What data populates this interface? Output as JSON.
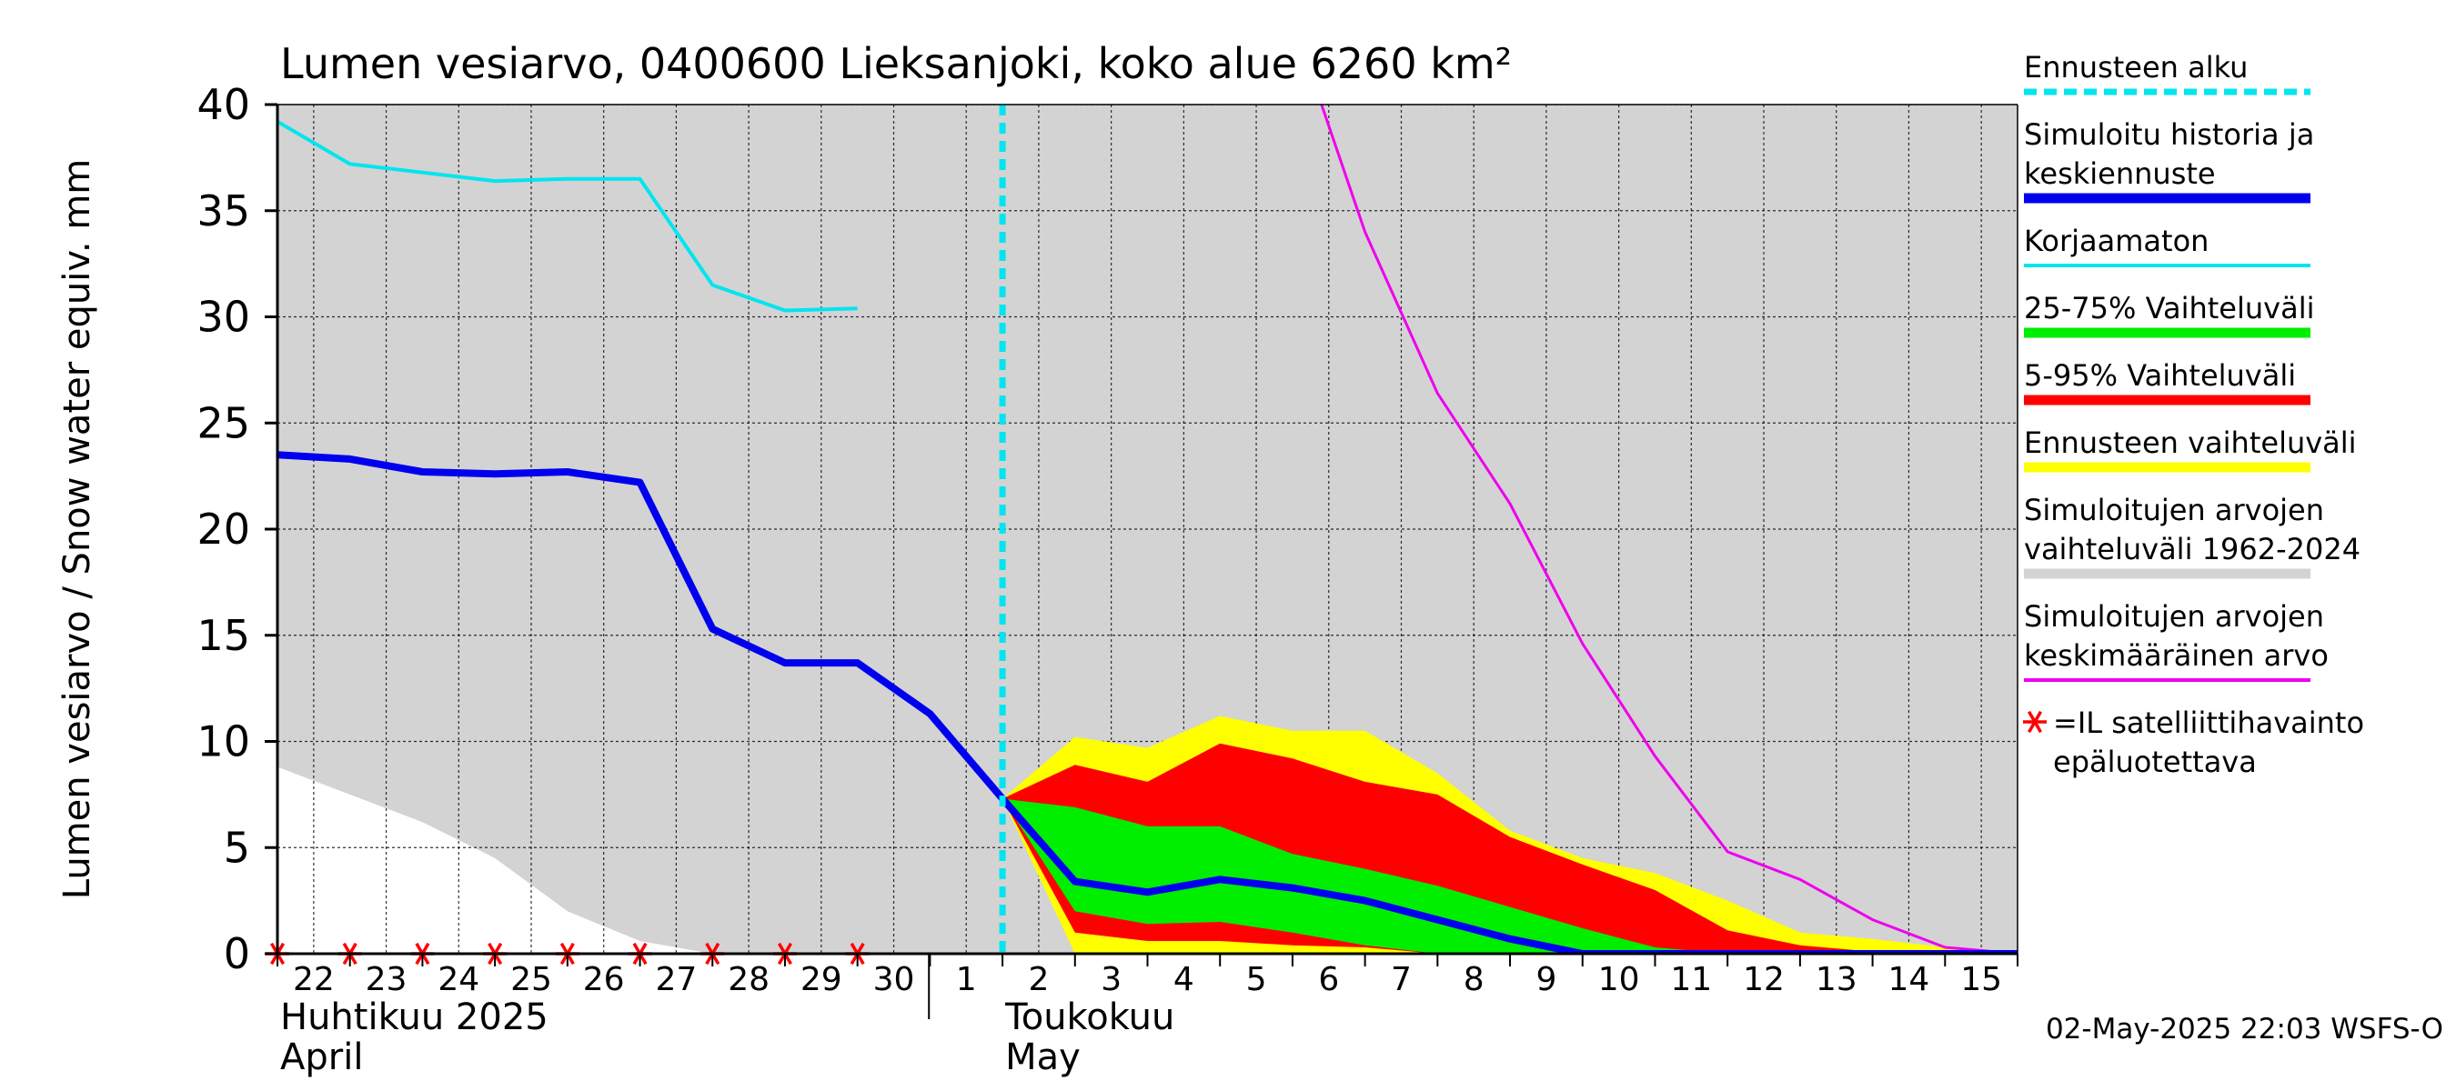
{
  "chart_data": {
    "type": "area",
    "title": "Lumen vesiarvo, 0400600 Lieksanjoki, koko alue 6260 km²",
    "ylabel": "Lumen vesiarvo / Snow water equiv.    mm",
    "ylim": [
      0,
      40
    ],
    "xlim": [
      21.5,
      45.5
    ],
    "y_ticks": [
      0,
      5,
      10,
      15,
      20,
      25,
      30,
      35,
      40
    ],
    "x_tick_labels": [
      {
        "x": 22,
        "label": "22"
      },
      {
        "x": 23,
        "label": "23"
      },
      {
        "x": 24,
        "label": "24"
      },
      {
        "x": 25,
        "label": "25"
      },
      {
        "x": 26,
        "label": "26"
      },
      {
        "x": 27,
        "label": "27"
      },
      {
        "x": 28,
        "label": "28"
      },
      {
        "x": 29,
        "label": "29"
      },
      {
        "x": 30,
        "label": "30"
      },
      {
        "x": 31,
        "label": "1"
      },
      {
        "x": 32,
        "label": "2"
      },
      {
        "x": 33,
        "label": "3"
      },
      {
        "x": 34,
        "label": "4"
      },
      {
        "x": 35,
        "label": "5"
      },
      {
        "x": 36,
        "label": "6"
      },
      {
        "x": 37,
        "label": "7"
      },
      {
        "x": 38,
        "label": "8"
      },
      {
        "x": 39,
        "label": "9"
      },
      {
        "x": 40,
        "label": "10"
      },
      {
        "x": 41,
        "label": "11"
      },
      {
        "x": 42,
        "label": "12"
      },
      {
        "x": 43,
        "label": "13"
      },
      {
        "x": 44,
        "label": "14"
      },
      {
        "x": 45,
        "label": "15"
      }
    ],
    "month_labels": [
      {
        "x": 21.5,
        "line1": "Huhtikuu  2025",
        "line2": "April"
      },
      {
        "x": 31.5,
        "line1": "Toukokuu",
        "line2": "May"
      }
    ],
    "month_divider_x": 31,
    "grid": true,
    "legend_position": "right",
    "forecast_start_x": 31.5,
    "series": [
      {
        "name": "Simuloitujen arvojen vaihteluväli 1962-2024",
        "kind": "band",
        "color": "#d3d3d3",
        "x": [
          21.5,
          45.5
        ],
        "low": [
          0,
          0
        ],
        "high": [
          40,
          40
        ]
      },
      {
        "name": "",
        "kind": "lower-band-edge",
        "color": "#ffffff",
        "x": [
          21.5,
          22.5,
          23.5,
          24.5,
          25.5,
          26.5,
          27.5,
          28.5
        ],
        "values": [
          8.8,
          7.5,
          6.2,
          4.5,
          2.0,
          0.6,
          0.0,
          0.0
        ]
      },
      {
        "name": "Ennusteen vaihteluväli",
        "kind": "band",
        "color": "#ffff00",
        "x": [
          31.5,
          32.5,
          33.5,
          34.5,
          35.5,
          36.5,
          37.5,
          38.5,
          39.5,
          40.5,
          41.5,
          42.5,
          43.5,
          44.5,
          45.5
        ],
        "low": [
          7.3,
          0.0,
          0.0,
          0.0,
          0.0,
          0.0,
          0.0,
          0.0,
          0.0,
          0.0,
          0.0,
          0.0,
          0.0,
          0.0,
          0.0
        ],
        "high": [
          7.3,
          10.2,
          9.7,
          11.2,
          10.5,
          10.5,
          8.5,
          5.8,
          4.5,
          3.8,
          2.5,
          1.0,
          0.7,
          0.3,
          0.0
        ]
      },
      {
        "name": "5-95% Vaihteluväli",
        "kind": "band",
        "color": "#ff0000",
        "x": [
          31.5,
          32.5,
          33.5,
          34.5,
          35.5,
          36.5,
          37.5,
          38.5,
          39.5,
          40.5,
          41.5,
          42.5,
          43.5,
          44.5,
          45.5
        ],
        "low": [
          7.3,
          1.0,
          0.6,
          0.6,
          0.4,
          0.3,
          0.0,
          0.0,
          0.0,
          0.0,
          0.0,
          0.0,
          0.0,
          0.0,
          0.0
        ],
        "high": [
          7.3,
          8.9,
          8.1,
          9.9,
          9.2,
          8.1,
          7.5,
          5.5,
          4.2,
          3.0,
          1.1,
          0.4,
          0.1,
          0.0,
          0.0
        ]
      },
      {
        "name": "25-75% Vaihteluväli",
        "kind": "band",
        "color": "#00ee00",
        "x": [
          31.5,
          32.5,
          33.5,
          34.5,
          35.5,
          36.5,
          37.5,
          38.5,
          39.5,
          40.5,
          41.5,
          42.5,
          43.5,
          44.5,
          45.5
        ],
        "low": [
          7.3,
          2.0,
          1.4,
          1.5,
          1.0,
          0.4,
          0.0,
          0.0,
          0.0,
          0.0,
          0.0,
          0.0,
          0.0,
          0.0,
          0.0
        ],
        "high": [
          7.3,
          6.9,
          6.0,
          6.0,
          4.7,
          4.0,
          3.2,
          2.2,
          1.2,
          0.3,
          0.0,
          0.0,
          0.0,
          0.0,
          0.0
        ]
      },
      {
        "name": "Korjaamaton",
        "kind": "line",
        "color": "#00e5ee",
        "width": 4,
        "x": [
          21.5,
          22.5,
          23.5,
          24.5,
          25.5,
          26.5,
          27.5,
          28.5,
          29.5
        ],
        "values": [
          39.2,
          37.2,
          36.8,
          36.4,
          36.5,
          36.5,
          31.5,
          30.3,
          30.4
        ]
      },
      {
        "name": "Simuloitu historia ja keskiennuste",
        "kind": "line",
        "color": "#0000ee",
        "width": 8,
        "x": [
          21.5,
          22.5,
          23.5,
          24.5,
          25.5,
          26.5,
          27.5,
          28.5,
          29.5,
          30.5,
          31.5,
          32.5,
          33.5,
          34.5,
          35.5,
          36.5,
          37.5,
          38.5,
          39.5,
          40.5,
          41.5,
          42.5,
          43.5,
          44.5,
          45.5
        ],
        "values": [
          23.5,
          23.3,
          22.7,
          22.6,
          22.7,
          22.2,
          15.3,
          13.7,
          13.7,
          11.3,
          7.3,
          3.4,
          2.9,
          3.5,
          3.1,
          2.5,
          1.6,
          0.7,
          0.0,
          0.0,
          0.0,
          0.0,
          0.0,
          0.0,
          0.0
        ]
      },
      {
        "name": "Simuloitujen arvojen keskimääräinen arvo",
        "kind": "line",
        "color": "#ee00ee",
        "width": 3,
        "x": [
          35.9,
          36.5,
          37.5,
          38.5,
          39.5,
          40.5,
          41.5,
          42.5,
          43.5,
          44.5,
          45.5
        ],
        "values": [
          40.0,
          34.0,
          26.4,
          21.2,
          14.6,
          9.3,
          4.8,
          3.5,
          1.6,
          0.3,
          0.0
        ]
      },
      {
        "name": "*=IL satelliittihavainto epäluotettava",
        "kind": "markers",
        "color": "#ff0000",
        "x": [
          21.5,
          22.5,
          23.5,
          24.5,
          25.5,
          26.5,
          27.5,
          28.5,
          29.5
        ],
        "values": [
          0,
          0,
          0,
          0,
          0,
          0,
          0,
          0,
          0
        ]
      }
    ],
    "legend": [
      {
        "lines": [
          "Ennusteen alku"
        ],
        "color": "#00e5ee",
        "style": "dashed"
      },
      {
        "lines": [
          "Simuloitu historia ja",
          "keskiennuste"
        ],
        "color": "#0000ee",
        "style": "thick"
      },
      {
        "lines": [
          "Korjaamaton"
        ],
        "color": "#00e5ee",
        "style": "line"
      },
      {
        "lines": [
          "25-75% Vaihteluväli"
        ],
        "color": "#00ee00",
        "style": "thick"
      },
      {
        "lines": [
          "5-95% Vaihteluväli"
        ],
        "color": "#ff0000",
        "style": "thick"
      },
      {
        "lines": [
          "Ennusteen vaihteluväli"
        ],
        "color": "#ffff00",
        "style": "thick"
      },
      {
        "lines": [
          "Simuloitujen arvojen",
          "vaihteluväli 1962-2024"
        ],
        "color": "#d3d3d3",
        "style": "thick"
      },
      {
        "lines": [
          "Simuloitujen arvojen",
          "keskimääräinen arvo"
        ],
        "color": "#ee00ee",
        "style": "line"
      },
      {
        "lines": [
          "=IL satelliittihavainto",
          "epäluotettava"
        ],
        "color": "#ff0000",
        "style": "marker"
      }
    ],
    "footer": "02-May-2025 22:03 WSFS-O"
  }
}
